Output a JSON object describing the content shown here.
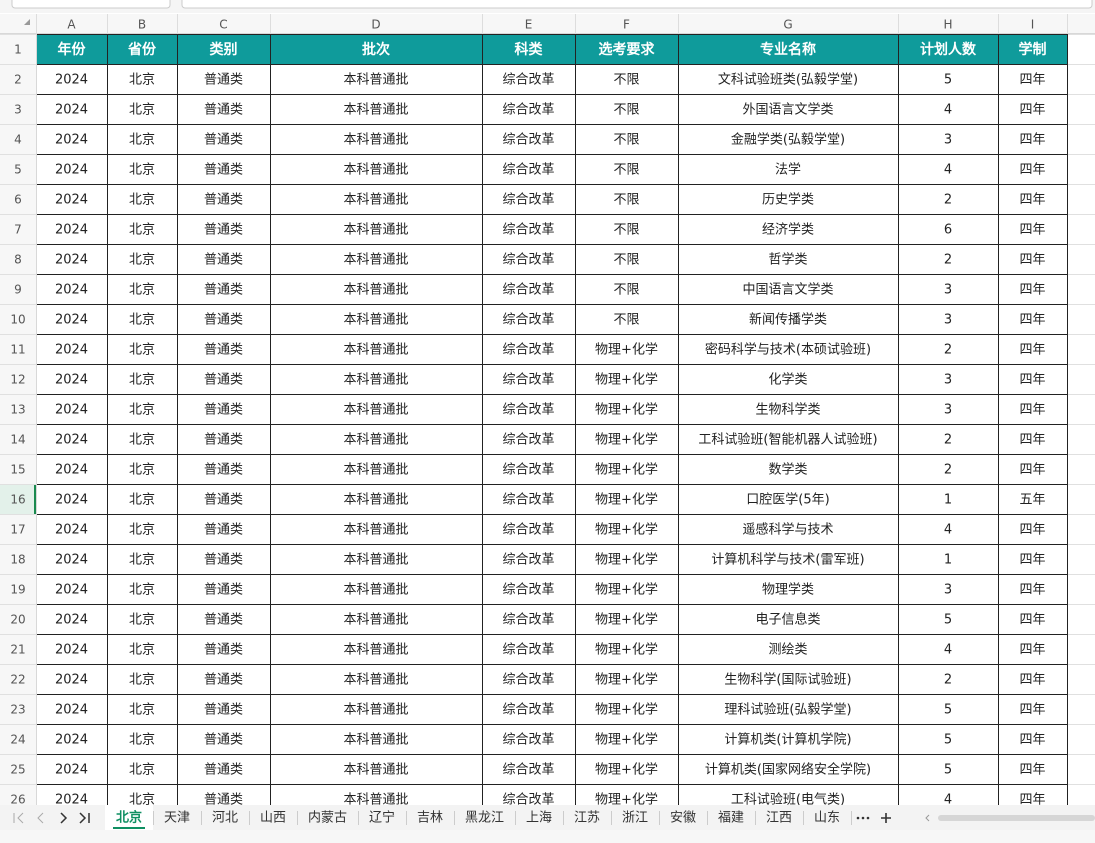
{
  "sheet": {
    "column_letters": [
      "A",
      "B",
      "C",
      "D",
      "E",
      "F",
      "G",
      "H",
      "I"
    ],
    "row_numbers": [
      1,
      2,
      3,
      4,
      5,
      6,
      7,
      8,
      9,
      10,
      11,
      12,
      13,
      14,
      15,
      16,
      17,
      18,
      19,
      20,
      21,
      22,
      23,
      24,
      25,
      26
    ],
    "table": {
      "header": [
        "年份",
        "省份",
        "类别",
        "批次",
        "科类",
        "选考要求",
        "专业名称",
        "计划人数",
        "学制"
      ],
      "rows": [
        [
          2024,
          "北京",
          "普通类",
          "本科普通批",
          "综合改革",
          "不限",
          "文科试验班类(弘毅学堂)",
          5,
          "四年"
        ],
        [
          2024,
          "北京",
          "普通类",
          "本科普通批",
          "综合改革",
          "不限",
          "外国语言文学类",
          4,
          "四年"
        ],
        [
          2024,
          "北京",
          "普通类",
          "本科普通批",
          "综合改革",
          "不限",
          "金融学类(弘毅学堂)",
          3,
          "四年"
        ],
        [
          2024,
          "北京",
          "普通类",
          "本科普通批",
          "综合改革",
          "不限",
          "法学",
          4,
          "四年"
        ],
        [
          2024,
          "北京",
          "普通类",
          "本科普通批",
          "综合改革",
          "不限",
          "历史学类",
          2,
          "四年"
        ],
        [
          2024,
          "北京",
          "普通类",
          "本科普通批",
          "综合改革",
          "不限",
          "经济学类",
          6,
          "四年"
        ],
        [
          2024,
          "北京",
          "普通类",
          "本科普通批",
          "综合改革",
          "不限",
          "哲学类",
          2,
          "四年"
        ],
        [
          2024,
          "北京",
          "普通类",
          "本科普通批",
          "综合改革",
          "不限",
          "中国语言文学类",
          3,
          "四年"
        ],
        [
          2024,
          "北京",
          "普通类",
          "本科普通批",
          "综合改革",
          "不限",
          "新闻传播学类",
          3,
          "四年"
        ],
        [
          2024,
          "北京",
          "普通类",
          "本科普通批",
          "综合改革",
          "物理+化学",
          "密码科学与技术(本硕试验班)",
          2,
          "四年"
        ],
        [
          2024,
          "北京",
          "普通类",
          "本科普通批",
          "综合改革",
          "物理+化学",
          "化学类",
          3,
          "四年"
        ],
        [
          2024,
          "北京",
          "普通类",
          "本科普通批",
          "综合改革",
          "物理+化学",
          "生物科学类",
          3,
          "四年"
        ],
        [
          2024,
          "北京",
          "普通类",
          "本科普通批",
          "综合改革",
          "物理+化学",
          "工科试验班(智能机器人试验班)",
          2,
          "四年"
        ],
        [
          2024,
          "北京",
          "普通类",
          "本科普通批",
          "综合改革",
          "物理+化学",
          "数学类",
          2,
          "四年"
        ],
        [
          2024,
          "北京",
          "普通类",
          "本科普通批",
          "综合改革",
          "物理+化学",
          "口腔医学(5年)",
          1,
          "五年"
        ],
        [
          2024,
          "北京",
          "普通类",
          "本科普通批",
          "综合改革",
          "物理+化学",
          "遥感科学与技术",
          4,
          "四年"
        ],
        [
          2024,
          "北京",
          "普通类",
          "本科普通批",
          "综合改革",
          "物理+化学",
          "计算机科学与技术(雷军班)",
          1,
          "四年"
        ],
        [
          2024,
          "北京",
          "普通类",
          "本科普通批",
          "综合改革",
          "物理+化学",
          "物理学类",
          3,
          "四年"
        ],
        [
          2024,
          "北京",
          "普通类",
          "本科普通批",
          "综合改革",
          "物理+化学",
          "电子信息类",
          5,
          "四年"
        ],
        [
          2024,
          "北京",
          "普通类",
          "本科普通批",
          "综合改革",
          "物理+化学",
          "测绘类",
          4,
          "四年"
        ],
        [
          2024,
          "北京",
          "普通类",
          "本科普通批",
          "综合改革",
          "物理+化学",
          "生物科学(国际试验班)",
          2,
          "四年"
        ],
        [
          2024,
          "北京",
          "普通类",
          "本科普通批",
          "综合改革",
          "物理+化学",
          "理科试验班(弘毅学堂)",
          5,
          "四年"
        ],
        [
          2024,
          "北京",
          "普通类",
          "本科普通批",
          "综合改革",
          "物理+化学",
          "计算机类(计算机学院)",
          5,
          "四年"
        ],
        [
          2024,
          "北京",
          "普通类",
          "本科普通批",
          "综合改革",
          "物理+化学",
          "计算机类(国家网络安全学院)",
          5,
          "四年"
        ],
        [
          2024,
          "北京",
          "普通类",
          "本科普通批",
          "综合改革",
          "物理+化学",
          "工科试验班(电气类)",
          4,
          "四年"
        ]
      ]
    },
    "sheet_tabs": [
      "北京",
      "天津",
      "河北",
      "山西",
      "内蒙古",
      "辽宁",
      "吉林",
      "黑龙江",
      "上海",
      "江苏",
      "浙江",
      "安徽",
      "福建",
      "江西",
      "山东"
    ],
    "active_tab": 0
  }
}
